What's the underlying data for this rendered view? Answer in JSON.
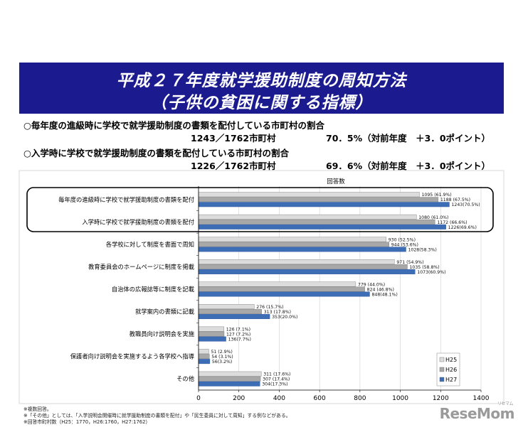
{
  "banner": {
    "line1": "平成２７年度就学援助制度の周知方法",
    "line2": "（子供の貧困に関する指標）"
  },
  "summary": [
    {
      "label": "○毎年度の進級時に学校で就学援助制度の書類を配付している市町村の割合",
      "count": "1243／1762市町村",
      "rate": "70．5%（対前年度　＋3．0ポイント）"
    },
    {
      "label": "○入学時に学校で就学援助制度の書類を配付している市町村の割合",
      "count": "1226／1762市町村",
      "rate": "69．6%（対前年度　＋3．0ポイント）"
    }
  ],
  "chart_data": {
    "type": "bar",
    "orientation": "horizontal",
    "title": "回答数",
    "categories": [
      "毎年度の進級時に学校で就学援助制度の書類を配付",
      "入学時に学校で就学援助制度の書類を配付",
      "各学校に対して制度を書面で周知",
      "教育委員会のホームページに制度を掲載",
      "自治体の広報誌等に制度を記載",
      "就学案内の書類に記載",
      "教職員向け説明会を実施",
      "保護者向け説明会を実施するよう各学校へ指導",
      "その他"
    ],
    "series": [
      {
        "name": "H25",
        "color": "#dcdcdc",
        "values": [
          1095,
          1080,
          930,
          971,
          779,
          276,
          126,
          51,
          311
        ],
        "labels": [
          "1095  (61.9%)",
          "1080  (61.0%)",
          "930  (52.5%)",
          "971  (54.9%)",
          "779  (44.0%)",
          "276  (15.7%)",
          "126  (7.1%)",
          "51  (2.9%)",
          "311  (17.6%)"
        ]
      },
      {
        "name": "H26",
        "color": "#a8a8a8",
        "values": [
          1188,
          1172,
          944,
          1035,
          824,
          313,
          127,
          54,
          307
        ],
        "labels": [
          "1188  (67.5%)",
          "1172  (66.6%)",
          "944  (53.6%)",
          "1035  (58.8%)",
          "824  (46.8%)",
          "313  (17.8%)",
          "127  (7.2%)",
          "54  (3.1%)",
          "307  (17.4%)"
        ]
      },
      {
        "name": "H27",
        "color": "#3d6db5",
        "values": [
          1243,
          1226,
          1028,
          1073,
          848,
          353,
          136,
          56,
          304
        ],
        "labels": [
          "1243(70.5%)",
          "1226(69.6%)",
          "1028(58.3%)",
          "1073(60.9%)",
          "848(48.1%)",
          "353(20.0%)",
          "136(7.7%)",
          "56(3.2%)",
          "304(17.3%)"
        ]
      }
    ],
    "xlim": [
      0,
      1400
    ],
    "xticks": [
      0,
      200,
      400,
      600,
      800,
      1000,
      1200,
      1400
    ],
    "legend": "right",
    "highlighted_categories": [
      0,
      1
    ]
  },
  "notes": [
    "※複数回答。",
    "※「その他」としては、「入学説明会開催時に就学援助制度の書類を配付」や「民生委員に対して周知」する例などがある。",
    "※回答市町村数（H25：1770，H26:1760，H27:1762）"
  ],
  "logo": {
    "text": "ReseMom",
    "sub": "リセマム"
  }
}
